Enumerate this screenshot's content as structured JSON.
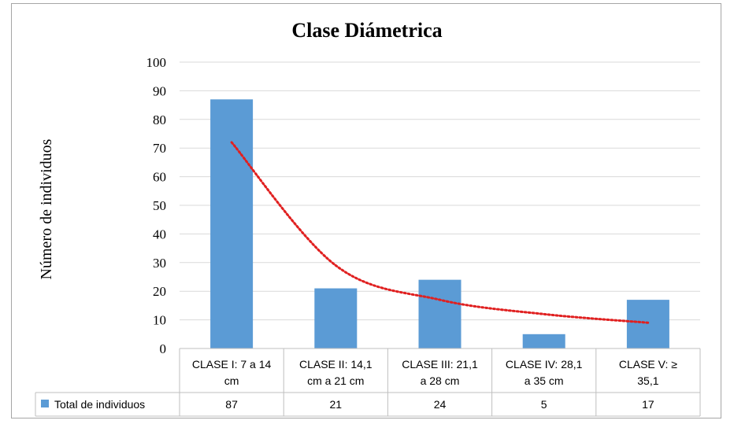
{
  "chart_data": {
    "type": "bar",
    "title": "Clase Diámetrica",
    "ylabel": "Número de individuos",
    "xlabel": "",
    "ylim": [
      0,
      100
    ],
    "yticks": [
      0,
      10,
      20,
      30,
      40,
      50,
      60,
      70,
      80,
      90,
      100
    ],
    "categories": [
      [
        "CLASE I: 7 a 14",
        "cm"
      ],
      [
        "CLASE II: 14,1",
        "cm a 21 cm"
      ],
      [
        "CLASE III: 21,1",
        "a 28 cm"
      ],
      [
        "CLASE IV: 28,1",
        "a 35 cm"
      ],
      [
        "CLASE V: ≥",
        "35,1"
      ]
    ],
    "series": [
      {
        "name": "Total de individuos",
        "values": [
          87,
          21,
          24,
          5,
          17
        ],
        "color": "#5b9bd5"
      }
    ],
    "trendline": {
      "type": "power",
      "style": "dotted",
      "color": "#e02020",
      "values": [
        72,
        29,
        17,
        12,
        9
      ]
    },
    "grid": true,
    "data_table": true
  }
}
